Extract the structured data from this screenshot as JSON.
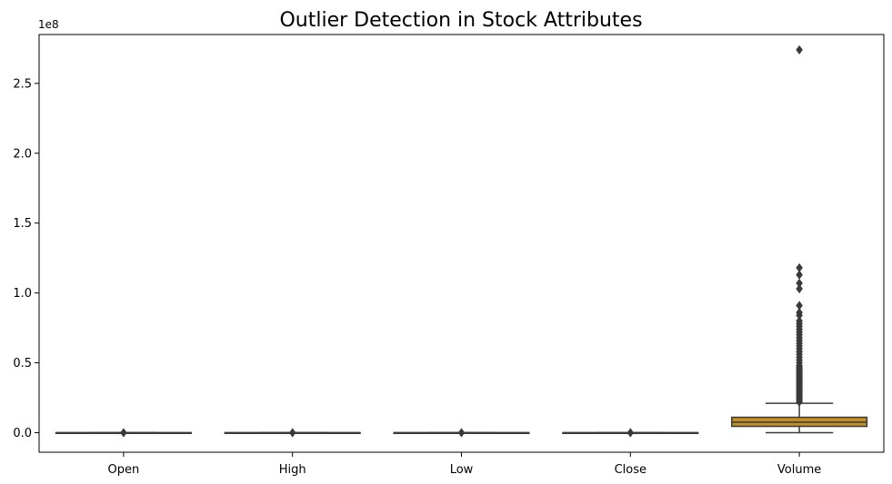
{
  "chart_data": {
    "type": "box",
    "title": "Outlier Detection in Stock Attributes",
    "xlabel": "",
    "ylabel": "",
    "y_offset_label": "1e8",
    "ylim": [
      -1.4,
      2.85
    ],
    "y_ticks": [
      0.0,
      0.5,
      1.0,
      1.5,
      2.0,
      2.5
    ],
    "y_tick_labels": [
      "0.0",
      "0.5",
      "1.0",
      "1.5",
      "2.0",
      "2.5"
    ],
    "categories": [
      "Open",
      "High",
      "Low",
      "Close",
      "Volume"
    ],
    "box_color": "#c28f25",
    "line_color": "#3a3a3a",
    "boxes": [
      {
        "category": "Open",
        "whisker_low": 0.0,
        "q1": 0.0,
        "median": 0.0,
        "q3": 0.0,
        "whisker_high": 0.0,
        "outliers": [
          0.0
        ]
      },
      {
        "category": "High",
        "whisker_low": 0.0,
        "q1": 0.0,
        "median": 0.0,
        "q3": 0.0,
        "whisker_high": 0.0,
        "outliers": [
          0.0
        ]
      },
      {
        "category": "Low",
        "whisker_low": 0.0,
        "q1": 0.0,
        "median": 0.0,
        "q3": 0.0,
        "whisker_high": 0.0,
        "outliers": [
          0.0
        ]
      },
      {
        "category": "Close",
        "whisker_low": 0.0,
        "q1": 0.0,
        "median": 0.0,
        "q3": 0.0,
        "whisker_high": 0.0,
        "outliers": [
          0.0
        ]
      },
      {
        "category": "Volume",
        "whisker_low": 0.0,
        "q1": 0.045,
        "median": 0.075,
        "q3": 0.11,
        "whisker_high": 0.21,
        "outliers": [
          0.22,
          0.23,
          0.24,
          0.25,
          0.26,
          0.27,
          0.28,
          0.29,
          0.3,
          0.31,
          0.32,
          0.33,
          0.34,
          0.35,
          0.36,
          0.37,
          0.38,
          0.39,
          0.4,
          0.41,
          0.42,
          0.43,
          0.44,
          0.45,
          0.46,
          0.47,
          0.48,
          0.5,
          0.52,
          0.54,
          0.56,
          0.58,
          0.6,
          0.62,
          0.64,
          0.66,
          0.68,
          0.7,
          0.72,
          0.74,
          0.76,
          0.78,
          0.8,
          0.84,
          0.86,
          0.91,
          1.03,
          1.07,
          1.13,
          1.18,
          2.74
        ]
      }
    ]
  }
}
